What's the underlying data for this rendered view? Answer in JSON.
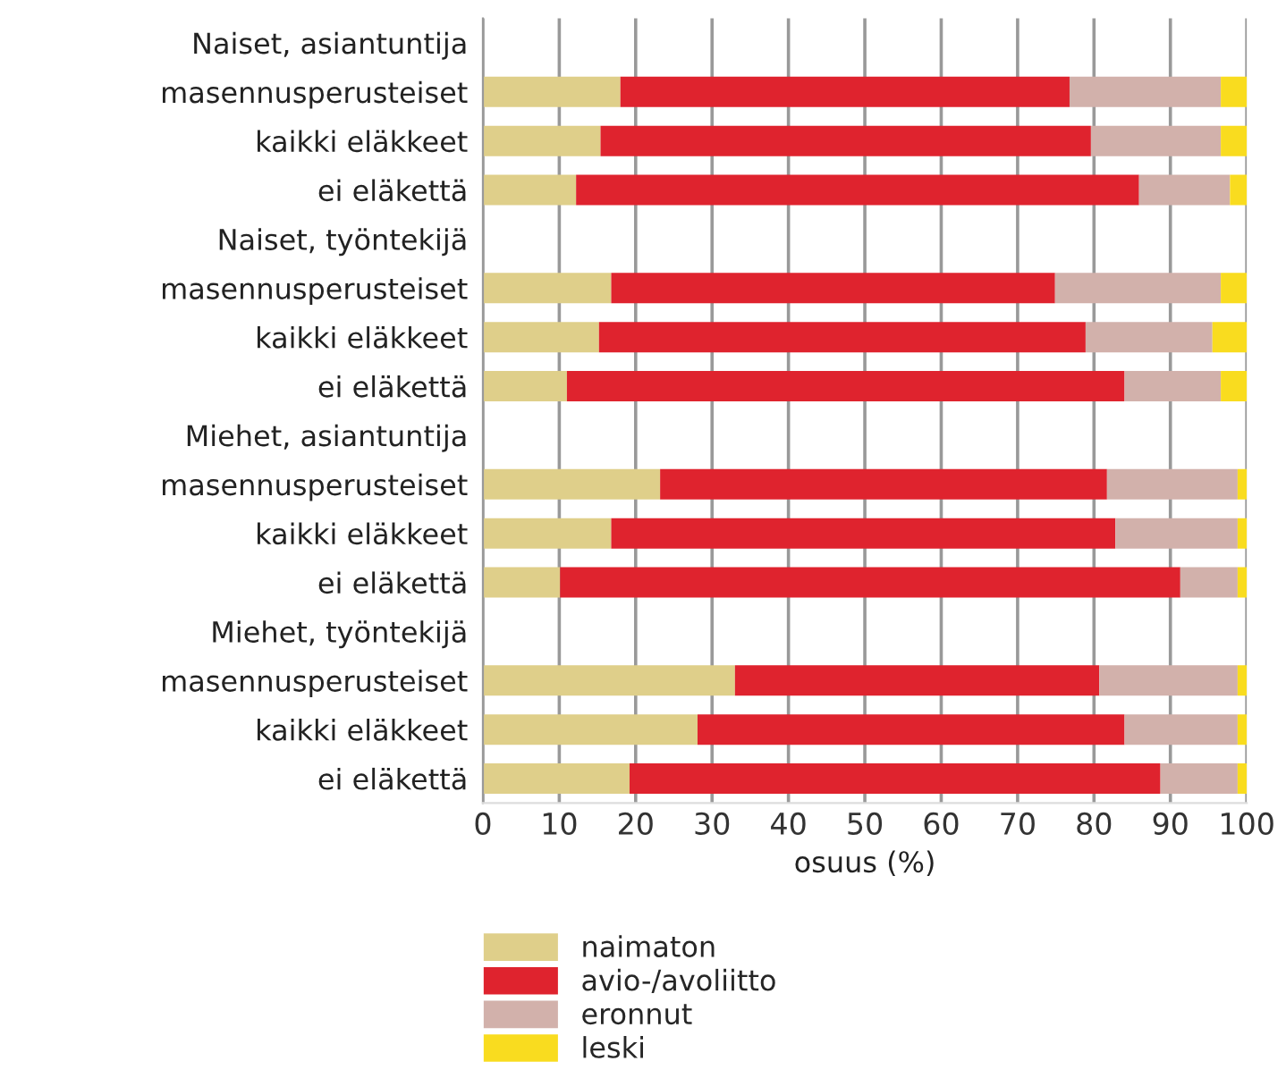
{
  "chart_data": {
    "type": "bar",
    "orientation": "horizontal",
    "stacked": true,
    "categories": [
      "Naiset, asiantuntija",
      "masennusperusteiset",
      "kaikki eläkkeet",
      "ei eläkettä",
      "Naiset, työntekijä",
      "masennusperusteiset",
      "kaikki eläkkeet",
      "ei eläkettä",
      "Miehet, asiantuntija",
      "masennusperusteiset",
      "kaikki eläkkeet",
      "ei eläkettä",
      "Miehet, työntekijä",
      "masennusperusteiset",
      "kaikki eläkkeet",
      "ei eläkettä"
    ],
    "series": [
      {
        "name": "naimaton",
        "color": "#dfcf8a",
        "values": [
          null,
          18.0,
          15.4,
          12.2,
          null,
          16.8,
          15.2,
          11.0,
          null,
          23.2,
          16.8,
          10.1,
          null,
          33.0,
          28.1,
          19.2
        ]
      },
      {
        "name": "avio-/avoliitto",
        "color": "#df232e",
        "values": [
          null,
          58.8,
          64.2,
          73.7,
          null,
          58.1,
          63.7,
          73.0,
          null,
          58.5,
          66.0,
          81.2,
          null,
          47.7,
          55.9,
          69.5
        ]
      },
      {
        "name": "eronnut",
        "color": "#d2b1ab",
        "values": [
          null,
          19.8,
          17.0,
          11.9,
          null,
          21.7,
          16.6,
          12.6,
          null,
          17.1,
          16.0,
          7.5,
          null,
          18.1,
          14.8,
          10.1
        ]
      },
      {
        "name": "leski",
        "color": "#f9dc1f",
        "values": [
          null,
          3.4,
          3.4,
          2.2,
          null,
          3.4,
          4.5,
          3.4,
          null,
          1.2,
          1.2,
          1.2,
          null,
          1.2,
          1.2,
          1.2
        ]
      }
    ],
    "xlabel": "osuus (%)",
    "xlim": [
      0,
      100
    ],
    "xticks": [
      0,
      10,
      20,
      30,
      40,
      50,
      60,
      70,
      80,
      90,
      100
    ],
    "grid": "x",
    "legend": "bottom left"
  }
}
